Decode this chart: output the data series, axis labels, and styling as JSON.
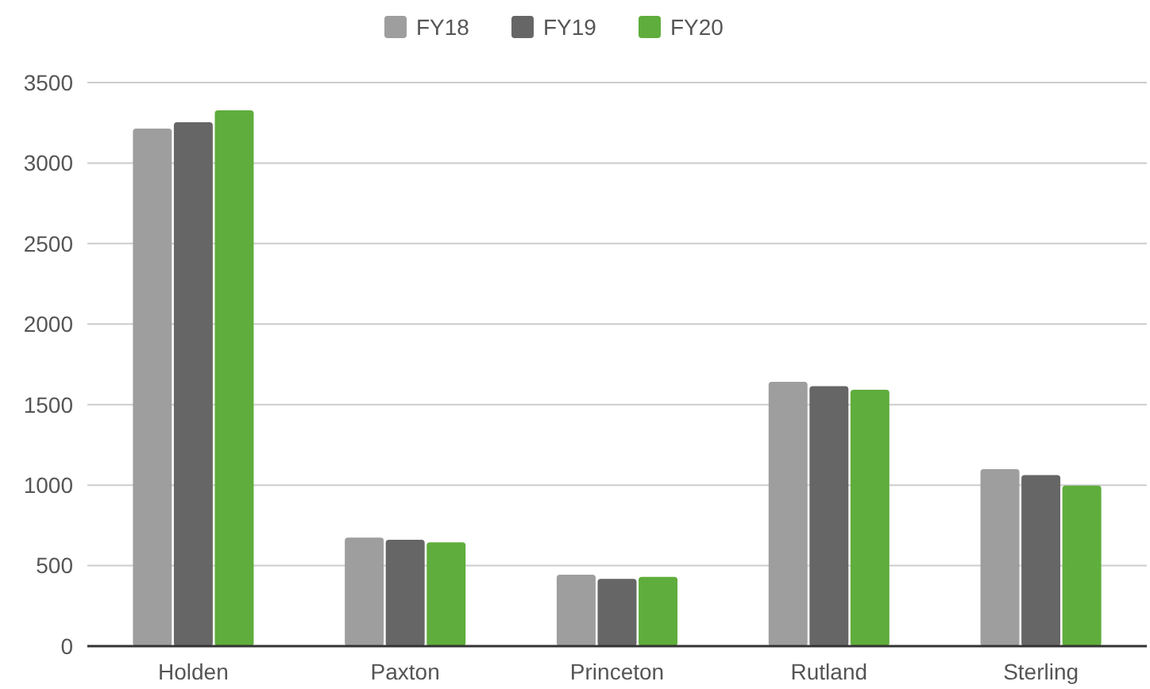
{
  "chart_data": {
    "type": "bar",
    "categories": [
      "Holden",
      "Paxton",
      "Princeton",
      "Rutland",
      "Sterling"
    ],
    "series": [
      {
        "name": "FY18",
        "color": "#9e9e9e",
        "values": [
          3214,
          674,
          444,
          1642,
          1099
        ]
      },
      {
        "name": "FY19",
        "color": "#666666",
        "values": [
          3253,
          661,
          418,
          1615,
          1062
        ]
      },
      {
        "name": "FY20",
        "color": "#5fad3c",
        "values": [
          3328,
          645,
          430,
          1592,
          997
        ]
      }
    ],
    "ylim": [
      0,
      3500
    ],
    "yticks": [
      0,
      500,
      1000,
      1500,
      2000,
      2500,
      3000,
      3500
    ],
    "grid": "y",
    "legend": "top"
  }
}
